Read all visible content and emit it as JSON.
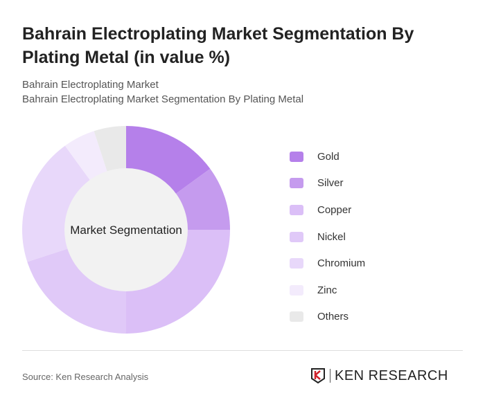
{
  "title": "Bahrain Electroplating Market Segmentation By Plating Metal (in value %)",
  "subtitle1": "Bahrain Electroplating Market",
  "subtitle2": "Bahrain Electroplating Market Segmentation By Plating Metal",
  "source": "Source: Ken Research Analysis",
  "logo": "KEN RESEARCH",
  "chart_data": {
    "type": "pie",
    "donut": true,
    "center_label": "Market Segmentation",
    "categories": [
      "Gold",
      "Silver",
      "Copper",
      "Nickel",
      "Chromium",
      "Zinc",
      "Others"
    ],
    "values": [
      15,
      10,
      25,
      20,
      20,
      5,
      5
    ],
    "colors": [
      "#b580ea",
      "#c59bee",
      "#dbbff7",
      "#e0c9f8",
      "#e8d8fa",
      "#f3ebfc",
      "#e9e9e9"
    ],
    "legend_position": "right"
  }
}
